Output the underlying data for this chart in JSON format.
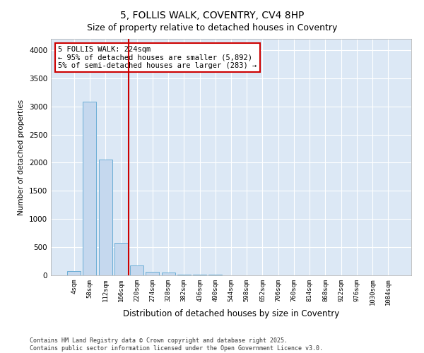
{
  "title1": "5, FOLLIS WALK, COVENTRY, CV4 8HP",
  "title2": "Size of property relative to detached houses in Coventry",
  "xlabel": "Distribution of detached houses by size in Coventry",
  "ylabel": "Number of detached properties",
  "bar_color": "#c5d8ee",
  "bar_edge_color": "#6baed6",
  "background_color": "#dce8f5",
  "grid_color": "#ffffff",
  "vline_color": "#cc0000",
  "annotation_text": "5 FOLLIS WALK: 224sqm\n← 95% of detached houses are smaller (5,892)\n5% of semi-detached houses are larger (283) →",
  "annotation_box_color": "#cc0000",
  "categories": [
    "4sqm",
    "58sqm",
    "112sqm",
    "166sqm",
    "220sqm",
    "274sqm",
    "328sqm",
    "382sqm",
    "436sqm",
    "490sqm",
    "544sqm",
    "598sqm",
    "652sqm",
    "706sqm",
    "760sqm",
    "814sqm",
    "868sqm",
    "922sqm",
    "976sqm",
    "1030sqm",
    "1084sqm"
  ],
  "values": [
    80,
    3080,
    2060,
    580,
    170,
    60,
    50,
    10,
    10,
    10,
    5,
    5,
    5,
    0,
    0,
    0,
    0,
    0,
    0,
    0,
    5
  ],
  "ylim": [
    0,
    4200
  ],
  "yticks": [
    0,
    500,
    1000,
    1500,
    2000,
    2500,
    3000,
    3500,
    4000
  ],
  "vline_index": 3.5,
  "footer_text": "Contains HM Land Registry data © Crown copyright and database right 2025.\nContains public sector information licensed under the Open Government Licence v3.0."
}
